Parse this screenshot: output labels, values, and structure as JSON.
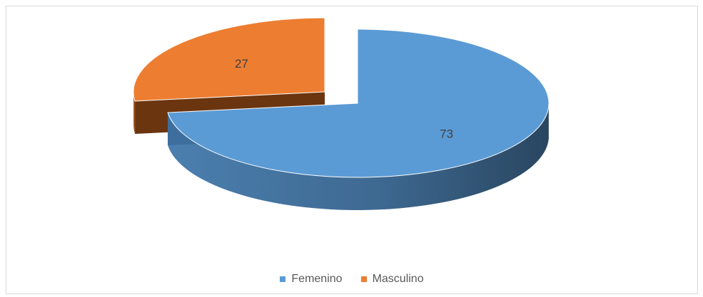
{
  "chart_data": {
    "type": "pie",
    "style": "3d-exploded",
    "categories": [
      "Femenino",
      "Masculino"
    ],
    "values": [
      73,
      27
    ],
    "data_labels": [
      "73",
      "27"
    ],
    "colors": [
      "#5b9bd5",
      "#ed7d31"
    ],
    "legend_position": "bottom"
  }
}
